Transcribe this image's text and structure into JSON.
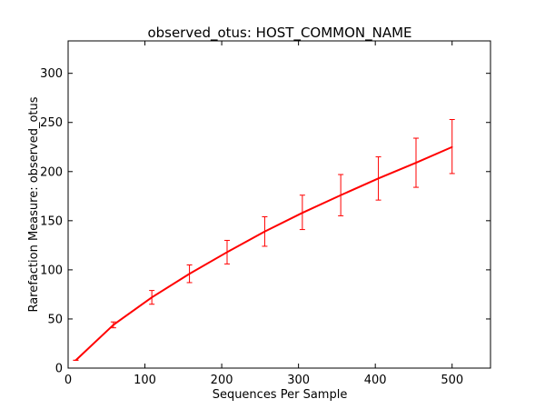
{
  "chart_data": {
    "type": "line",
    "title": "observed_otus: HOST_COMMON_NAME",
    "xlabel": "Sequences Per Sample",
    "ylabel": "Rarefaction Measure: observed_otus",
    "xlim": [
      0,
      550
    ],
    "ylim": [
      0,
      333
    ],
    "x_ticks": [
      0,
      100,
      200,
      300,
      400,
      500
    ],
    "y_ticks": [
      0,
      50,
      100,
      150,
      200,
      250,
      300
    ],
    "grid": false,
    "series": [
      {
        "color": "#ff0000",
        "x": [
          10,
          59,
          109,
          158,
          207,
          256,
          305,
          355,
          404,
          453,
          500
        ],
        "y": [
          8,
          44,
          72,
          96,
          118,
          139,
          158,
          176,
          193,
          209,
          225
        ],
        "err_low": [
          8,
          41,
          65,
          87,
          106,
          124,
          141,
          155,
          171,
          184,
          198
        ],
        "err_high": [
          8,
          47,
          79,
          105,
          130,
          154,
          176,
          197,
          215,
          234,
          253
        ]
      }
    ]
  }
}
